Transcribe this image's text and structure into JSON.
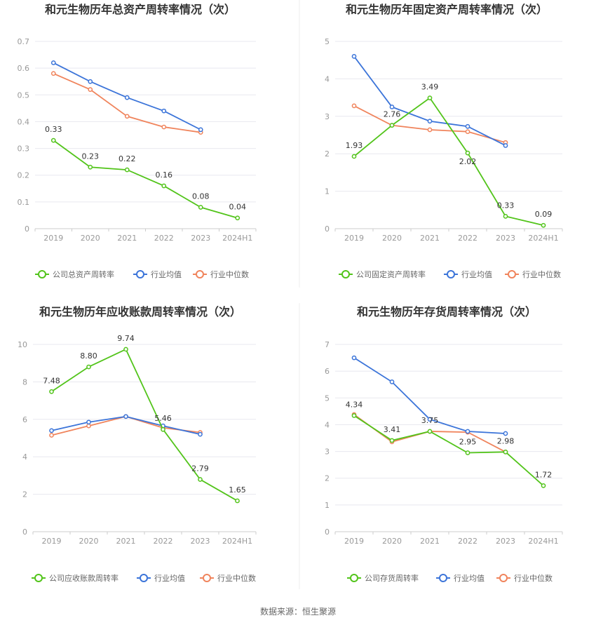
{
  "colors": {
    "company": "#52c41a",
    "avg": "#3b74d9",
    "median": "#f0845c"
  },
  "source": "数据来源：恒生聚源",
  "chart_data": [
    {
      "type": "line",
      "title": "和元生物历年总资产周转率情况（次）",
      "categories": [
        "2019",
        "2020",
        "2021",
        "2022",
        "2023",
        "2024H1"
      ],
      "yticks": [
        "0",
        "0.1",
        "0.2",
        "0.3",
        "0.4",
        "0.5",
        "0.6",
        "0.7"
      ],
      "ylim": [
        0,
        0.7
      ],
      "grid": true,
      "legend_position": "bottom",
      "series": [
        {
          "name": "公司总资产周转率",
          "role": "company",
          "values": [
            0.33,
            0.23,
            0.22,
            0.16,
            0.08,
            0.04
          ],
          "labels": [
            "0.33",
            "0.23",
            "0.22",
            "0.16",
            "0.08",
            "0.04"
          ]
        },
        {
          "name": "行业均值",
          "role": "avg",
          "values": [
            0.62,
            0.55,
            0.49,
            0.44,
            0.37,
            null
          ]
        },
        {
          "name": "行业中位数",
          "role": "median",
          "values": [
            0.58,
            0.52,
            0.42,
            0.38,
            0.36,
            null
          ]
        }
      ]
    },
    {
      "type": "line",
      "title": "和元生物历年固定资产周转率情况（次）",
      "categories": [
        "2019",
        "2020",
        "2021",
        "2022",
        "2023",
        "2024H1"
      ],
      "yticks": [
        "0",
        "1",
        "2",
        "3",
        "4",
        "5"
      ],
      "ylim": [
        0,
        5
      ],
      "grid": true,
      "legend_position": "bottom",
      "series": [
        {
          "name": "公司固定资产周转率",
          "role": "company",
          "values": [
            1.93,
            2.76,
            3.49,
            2.02,
            0.33,
            0.09
          ],
          "labels": [
            "1.93",
            "2.76",
            "3.49",
            "2.02",
            "0.33",
            "0.09"
          ]
        },
        {
          "name": "行业均值",
          "role": "avg",
          "values": [
            4.6,
            3.25,
            2.87,
            2.73,
            2.22,
            null
          ]
        },
        {
          "name": "行业中位数",
          "role": "median",
          "values": [
            3.28,
            2.76,
            2.64,
            2.59,
            2.3,
            null
          ]
        }
      ]
    },
    {
      "type": "line",
      "title": "和元生物历年应收账款周转率情况（次）",
      "categories": [
        "2019",
        "2020",
        "2021",
        "2022",
        "2023",
        "2024H1"
      ],
      "yticks": [
        "0",
        "2",
        "4",
        "6",
        "8",
        "10"
      ],
      "ylim": [
        0,
        10
      ],
      "grid": true,
      "legend_position": "bottom",
      "series": [
        {
          "name": "公司应收账款周转率",
          "role": "company",
          "values": [
            7.48,
            8.8,
            9.74,
            5.46,
            2.79,
            1.65
          ],
          "labels": [
            "7.48",
            "8.80",
            "9.74",
            "5.46",
            "2.79",
            "1.65"
          ]
        },
        {
          "name": "行业均值",
          "role": "avg",
          "values": [
            5.4,
            5.85,
            6.15,
            5.65,
            5.2,
            null
          ]
        },
        {
          "name": "行业中位数",
          "role": "median",
          "values": [
            5.15,
            5.65,
            6.15,
            5.55,
            5.3,
            null
          ]
        }
      ]
    },
    {
      "type": "line",
      "title": "和元生物历年存货周转率情况（次）",
      "categories": [
        "2019",
        "2020",
        "2021",
        "2022",
        "2023",
        "2024H1"
      ],
      "yticks": [
        "0",
        "1",
        "2",
        "3",
        "4",
        "5",
        "6",
        "7"
      ],
      "ylim": [
        0,
        7
      ],
      "grid": true,
      "legend_position": "bottom",
      "series": [
        {
          "name": "公司存货周转率",
          "role": "company",
          "values": [
            4.34,
            3.41,
            3.75,
            2.95,
            2.98,
            1.72
          ],
          "labels": [
            "4.34",
            "3.41",
            "3.75",
            "2.95",
            "2.98",
            "1.72"
          ]
        },
        {
          "name": "行业均值",
          "role": "avg",
          "values": [
            6.5,
            5.6,
            4.2,
            3.75,
            3.67,
            null
          ]
        },
        {
          "name": "行业中位数",
          "role": "median",
          "values": [
            4.38,
            3.36,
            3.75,
            3.72,
            2.98,
            null
          ]
        }
      ]
    }
  ]
}
